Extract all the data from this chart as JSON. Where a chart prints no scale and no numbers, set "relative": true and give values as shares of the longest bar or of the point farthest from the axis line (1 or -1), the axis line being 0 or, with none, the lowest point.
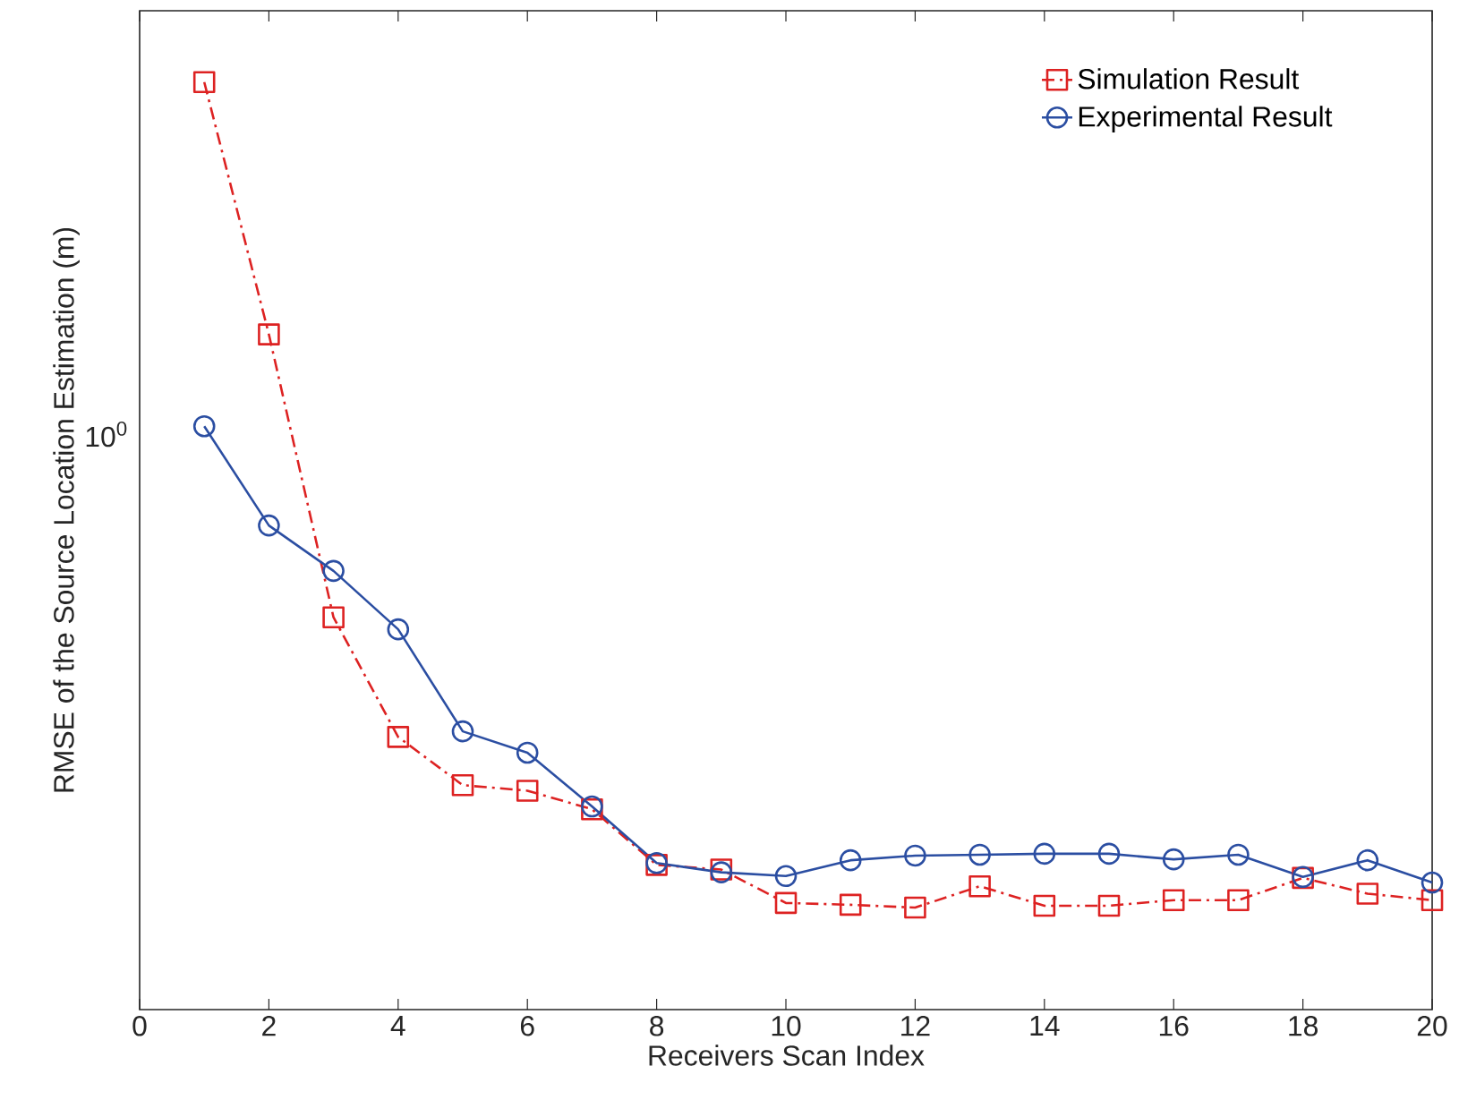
{
  "chart_data": {
    "type": "line",
    "xlabel": "Receivers Scan Index",
    "ylabel": "RMSE of the Source Location Estimation (m)",
    "x": [
      1,
      2,
      3,
      4,
      5,
      6,
      7,
      8,
      9,
      10,
      11,
      12,
      13,
      14,
      15,
      16,
      17,
      18,
      19,
      20
    ],
    "series": [
      {
        "name": "Simulation Result",
        "color": "#dd2222",
        "marker": "square",
        "line_style": "dashed",
        "values": [
          1,
          0.728,
          0.423,
          0.294,
          0.242,
          0.236,
          0.216,
          0.156,
          0.151,
          0.115,
          0.113,
          0.11,
          0.133,
          0.112,
          0.112,
          0.118,
          0.118,
          0.142,
          0.125,
          0.118
        ]
      },
      {
        "name": "Experimental Result",
        "color": "#2b4ea2",
        "marker": "circle",
        "line_style": "solid",
        "values": [
          0.629,
          0.522,
          0.473,
          0.41,
          0.3,
          0.277,
          0.219,
          0.158,
          0.148,
          0.144,
          0.161,
          0.166,
          0.167,
          0.168,
          0.168,
          0.162,
          0.167,
          0.143,
          0.161,
          0.137
        ]
      }
    ],
    "relative": true,
    "xlim": [
      0,
      20
    ],
    "xticks": [
      0,
      2,
      4,
      6,
      8,
      10,
      12,
      14,
      16,
      18,
      20
    ],
    "annotations": [
      "10$^{0}$"
    ],
    "legend": "top right"
  }
}
